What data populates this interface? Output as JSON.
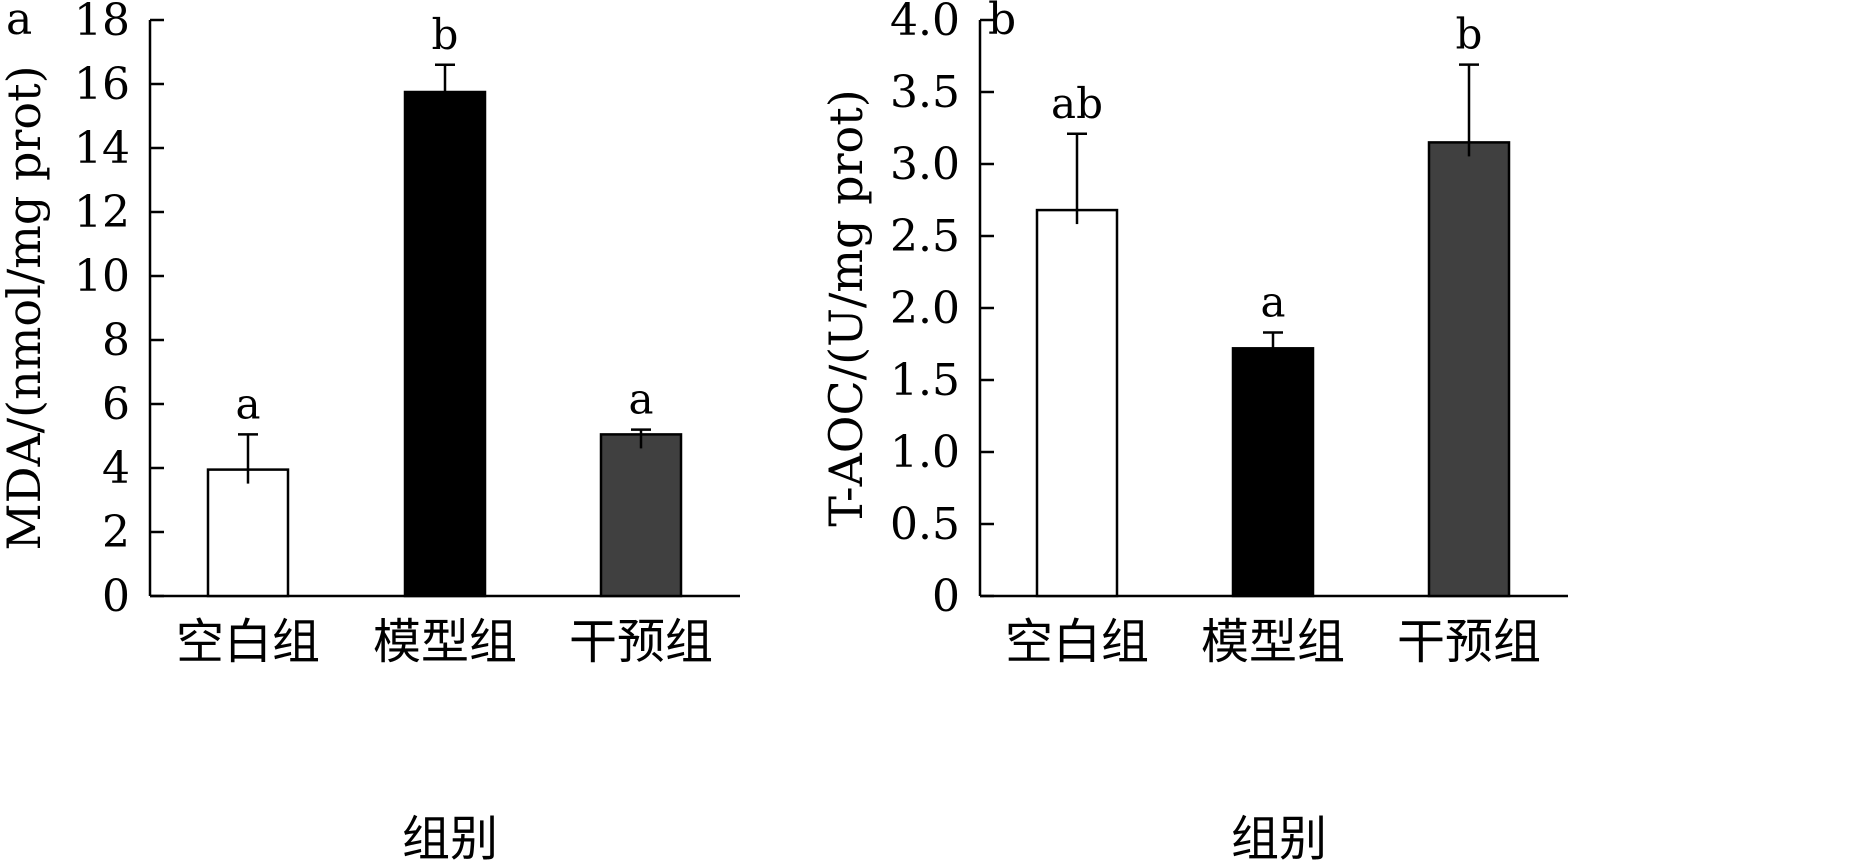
{
  "chart_data": [
    {
      "type": "bar",
      "panel_label": "a",
      "title": "",
      "xlabel": "组别",
      "ylabel": "MDA/(nmol/mg prot)",
      "ylim": [
        0,
        18
      ],
      "yticks": [
        "0",
        "2",
        "4",
        "6",
        "8",
        "10",
        "12",
        "14",
        "16",
        "18"
      ],
      "categories": [
        "空白组",
        "模型组",
        "干预组"
      ],
      "values": [
        3.95,
        15.75,
        5.05
      ],
      "errors": [
        1.1,
        0.85,
        0.15
      ],
      "significance": [
        "a",
        "b",
        "a"
      ],
      "colors": [
        "#ffffff",
        "#000000",
        "#404040"
      ],
      "grid": false,
      "legend": "none"
    },
    {
      "type": "bar",
      "panel_label": "b",
      "title": "",
      "xlabel": "组别",
      "ylabel": "T-AOC/(U/mg prot)",
      "ylim": [
        0,
        4.0
      ],
      "yticks": [
        "0",
        "0.5",
        "1.0",
        "1.5",
        "2.0",
        "2.5",
        "3.0",
        "3.5",
        "4.0"
      ],
      "categories": [
        "空白组",
        "模型组",
        "干预组"
      ],
      "values": [
        2.68,
        1.72,
        3.15
      ],
      "errors": [
        0.53,
        0.11,
        0.54
      ],
      "significance": [
        "ab",
        "a",
        "b"
      ],
      "colors": [
        "#ffffff",
        "#000000",
        "#404040"
      ],
      "grid": false,
      "legend": "none"
    }
  ]
}
